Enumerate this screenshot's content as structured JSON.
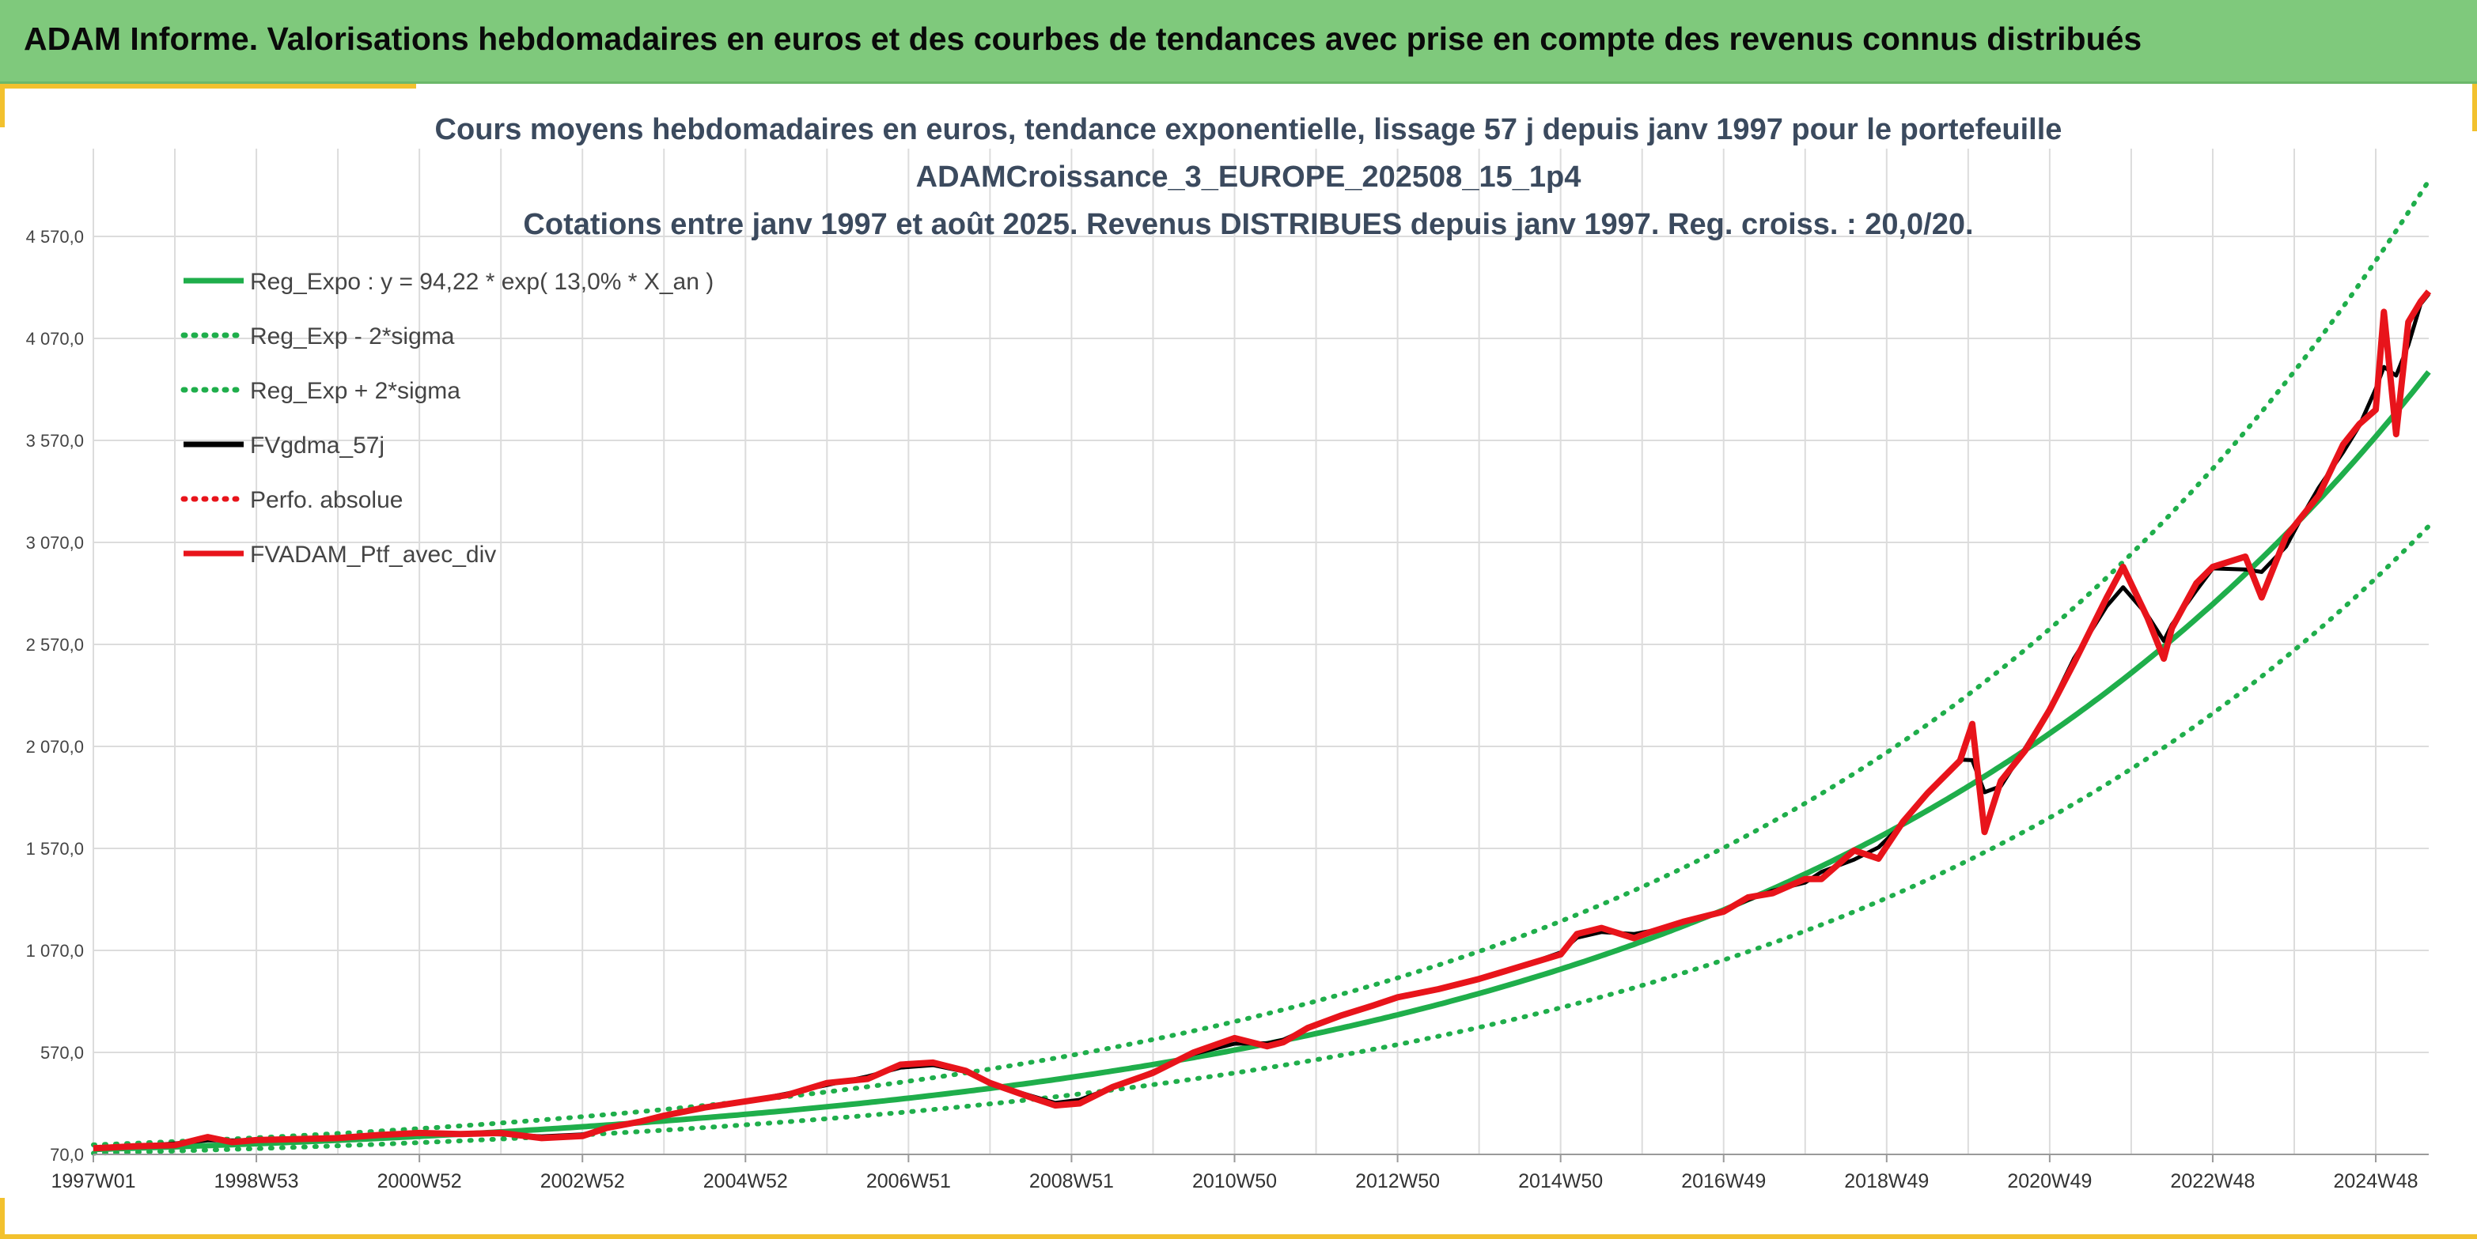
{
  "banner": {
    "title": "ADAM Informe. Valorisations hebdomadaires en euros et des courbes de tendances avec prise en compte des revenus connus distribués"
  },
  "colors": {
    "banner_bg": "#7fc97c",
    "accent_gold": "#f2c12e",
    "trend": "#1fae4b",
    "smoothed": "#000000",
    "portfolio": "#e8141b"
  },
  "chart_data": {
    "type": "line",
    "title_lines": [
      "Cours moyens hebdomadaires en euros, tendance exponentielle, lissage 57 j depuis janv 1997 pour le portefeuille",
      "ADAMCroissance_3_EUROPE_202508_15_1p4",
      "Cotations entre janv 1997 et août 2025. Revenus DISTRIBUES depuis janv 1997. Reg. croiss. : 20,0/20."
    ],
    "xlabel": "",
    "ylabel": "",
    "x_range": [
      1997.0,
      2025.65
    ],
    "x_tick_values": [
      1997.0,
      1999.0,
      2001.0,
      2003.0,
      2005.0,
      2007.0,
      2009.0,
      2011.0,
      2013.0,
      2015.0,
      2017.0,
      2019.0,
      2021.0,
      2023.0,
      2025.0
    ],
    "x_tick_labels": [
      "1997W01",
      "1998W53",
      "2000W52",
      "2002W52",
      "2004W52",
      "2006W51",
      "2008W51",
      "2010W50",
      "2012W50",
      "2014W50",
      "2016W49",
      "2018W49",
      "2020W49",
      "2022W48",
      "2024W48"
    ],
    "ylim": [
      70,
      5000
    ],
    "y_ticks": [
      70,
      570,
      1070,
      1570,
      2070,
      2570,
      3070,
      3570,
      4070,
      4570
    ],
    "y_tick_labels": [
      "70,0",
      "570,0",
      "1 070,0",
      "1 570,0",
      "2 070,0",
      "2 570,0",
      "3 070,0",
      "3 570,0",
      "4 070,0",
      "4 570,0"
    ],
    "grid": true,
    "legend_position": "top-left",
    "regression": {
      "a": 94.22,
      "rate": 0.13,
      "x0": 1997.0,
      "band_factor": 1.24
    },
    "series": [
      {
        "name": "Reg_Expo : y = 94,22 * exp( 13,0% *  X_an )",
        "style": "solid",
        "color": "#1fae4b",
        "kind": "trend"
      },
      {
        "name": "Reg_Exp - 2*sigma",
        "style": "dotted",
        "color": "#1fae4b",
        "kind": "lower"
      },
      {
        "name": "Reg_Exp + 2*sigma",
        "style": "dotted",
        "color": "#1fae4b",
        "kind": "upper"
      },
      {
        "name": "FVgdma_57j",
        "style": "solid",
        "color": "#000000",
        "kind": "smoothed"
      },
      {
        "name": "Perfo. absolue",
        "style": "dotted",
        "color": "#e8141b",
        "kind": "absolute"
      },
      {
        "name": "FVADAM_Ptf_avec_div",
        "style": "solid",
        "color": "#e8141b",
        "kind": "portfolio",
        "x": [
          1997.0,
          1997.5,
          1998.0,
          1998.4,
          1998.7,
          1999.0,
          1999.5,
          2000.0,
          2000.5,
          2001.0,
          2001.5,
          2002.0,
          2002.5,
          2003.0,
          2003.3,
          2003.7,
          2004.0,
          2004.5,
          2005.0,
          2005.5,
          2006.0,
          2006.5,
          2006.9,
          2007.3,
          2007.7,
          2008.0,
          2008.5,
          2008.8,
          2009.1,
          2009.5,
          2010.0,
          2010.5,
          2011.0,
          2011.4,
          2011.6,
          2011.9,
          2012.3,
          2012.7,
          2013.0,
          2013.5,
          2014.0,
          2014.5,
          2015.0,
          2015.2,
          2015.5,
          2015.9,
          2016.1,
          2016.5,
          2017.0,
          2017.3,
          2017.6,
          2018.0,
          2018.2,
          2018.6,
          2018.9,
          2019.2,
          2019.5,
          2019.9,
          2020.05,
          2020.2,
          2020.4,
          2020.7,
          2021.0,
          2021.3,
          2021.7,
          2021.9,
          2022.2,
          2022.4,
          2022.5,
          2022.8,
          2023.0,
          2023.4,
          2023.6,
          2023.9,
          2024.1,
          2024.3,
          2024.6,
          2024.8,
          2025.0,
          2025.1,
          2025.25,
          2025.4,
          2025.55,
          2025.65
        ],
        "values": [
          100,
          110,
          115,
          155,
          130,
          140,
          145,
          150,
          165,
          175,
          170,
          175,
          150,
          160,
          200,
          230,
          260,
          300,
          330,
          360,
          420,
          440,
          510,
          520,
          480,
          420,
          350,
          310,
          320,
          400,
          470,
          570,
          640,
          600,
          620,
          690,
          750,
          800,
          840,
          880,
          930,
          990,
          1050,
          1150,
          1180,
          1130,
          1160,
          1210,
          1260,
          1330,
          1350,
          1420,
          1420,
          1560,
          1520,
          1700,
          1840,
          2000,
          2180,
          1650,
          1900,
          2050,
          2250,
          2480,
          2800,
          2950,
          2700,
          2500,
          2650,
          2870,
          2950,
          3000,
          2800,
          3100,
          3200,
          3300,
          3550,
          3650,
          3720,
          4200,
          3600,
          4150,
          4250,
          4300
        ]
      }
    ]
  }
}
